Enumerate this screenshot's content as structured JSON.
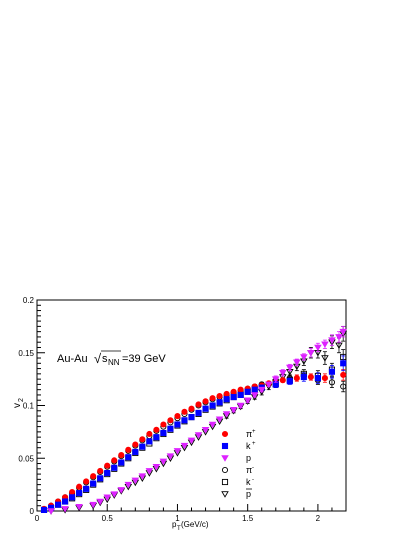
{
  "chart_data": {
    "type": "scatter",
    "annotation": {
      "prefix": "Au-Au",
      "sqrt_symbol": "√",
      "s": "s",
      "subscript": "NN",
      "suffix": "=39 GeV"
    },
    "xlabel": {
      "main": "p",
      "sub": "T",
      "unit": "(GeV/c)"
    },
    "ylabel": {
      "main": "v",
      "sub": "2"
    },
    "xlim": [
      0,
      2.2
    ],
    "ylim": [
      0,
      0.2
    ],
    "x_ticks": [
      {
        "value": 0,
        "label": "0"
      },
      {
        "value": 0.5,
        "label": "0.5"
      },
      {
        "value": 1,
        "label": "1"
      },
      {
        "value": 1.5,
        "label": "1.5"
      },
      {
        "value": 2,
        "label": "2"
      }
    ],
    "y_ticks": [
      {
        "value": 0,
        "label": "0"
      },
      {
        "value": 0.05,
        "label": "0.05"
      },
      {
        "value": 0.1,
        "label": "0.1"
      },
      {
        "value": 0.15,
        "label": "0.15"
      },
      {
        "value": 0.2,
        "label": "0.2"
      }
    ],
    "grid": false,
    "legend_position": "bottom-center",
    "series": [
      {
        "name": "π⁺",
        "label_base": "π",
        "label_sup": "+",
        "marker": "filled-circle",
        "color": "#ff0000",
        "x": [
          0.05,
          0.1,
          0.15,
          0.2,
          0.25,
          0.3,
          0.35,
          0.4,
          0.45,
          0.5,
          0.55,
          0.6,
          0.65,
          0.7,
          0.75,
          0.8,
          0.85,
          0.9,
          0.95,
          1.0,
          1.05,
          1.1,
          1.15,
          1.2,
          1.25,
          1.3,
          1.35,
          1.4,
          1.45,
          1.5,
          1.55,
          1.6,
          1.65,
          1.7,
          1.75,
          1.85,
          1.95,
          2.05,
          2.18
        ],
        "y": [
          0.002,
          0.005,
          0.009,
          0.013,
          0.018,
          0.023,
          0.028,
          0.033,
          0.038,
          0.043,
          0.048,
          0.053,
          0.058,
          0.063,
          0.068,
          0.073,
          0.077,
          0.082,
          0.086,
          0.09,
          0.094,
          0.097,
          0.101,
          0.104,
          0.107,
          0.109,
          0.111,
          0.113,
          0.115,
          0.116,
          0.118,
          0.119,
          0.121,
          0.122,
          0.124,
          0.126,
          0.127,
          0.126,
          0.129
        ],
        "err": [
          0.001,
          0.001,
          0.001,
          0.001,
          0.001,
          0.001,
          0.001,
          0.001,
          0.001,
          0.001,
          0.001,
          0.001,
          0.001,
          0.001,
          0.001,
          0.001,
          0.001,
          0.001,
          0.001,
          0.001,
          0.001,
          0.001,
          0.001,
          0.001,
          0.001,
          0.001,
          0.001,
          0.001,
          0.001,
          0.001,
          0.002,
          0.002,
          0.002,
          0.002,
          0.002,
          0.003,
          0.003,
          0.004,
          0.005
        ]
      },
      {
        "name": "k⁺",
        "label_base": "k",
        "label_sup": "+",
        "marker": "filled-square",
        "color": "#0000ff",
        "x": [
          0.05,
          0.1,
          0.15,
          0.2,
          0.25,
          0.3,
          0.35,
          0.4,
          0.45,
          0.5,
          0.55,
          0.6,
          0.65,
          0.7,
          0.75,
          0.8,
          0.85,
          0.9,
          0.95,
          1.0,
          1.05,
          1.1,
          1.15,
          1.2,
          1.25,
          1.3,
          1.35,
          1.4,
          1.45,
          1.5,
          1.55,
          1.6,
          1.7,
          1.8,
          1.9,
          2.0,
          2.1,
          2.18
        ],
        "y": [
          0.001,
          0.003,
          0.006,
          0.009,
          0.013,
          0.017,
          0.021,
          0.026,
          0.031,
          0.036,
          0.041,
          0.046,
          0.051,
          0.056,
          0.061,
          0.066,
          0.07,
          0.074,
          0.078,
          0.082,
          0.086,
          0.089,
          0.093,
          0.097,
          0.1,
          0.103,
          0.106,
          0.108,
          0.11,
          0.113,
          0.115,
          0.117,
          0.12,
          0.123,
          0.127,
          0.126,
          0.132,
          0.14
        ],
        "err": [
          0.001,
          0.001,
          0.001,
          0.001,
          0.001,
          0.001,
          0.001,
          0.001,
          0.001,
          0.001,
          0.001,
          0.001,
          0.001,
          0.001,
          0.001,
          0.001,
          0.001,
          0.001,
          0.001,
          0.001,
          0.001,
          0.001,
          0.001,
          0.001,
          0.001,
          0.001,
          0.001,
          0.002,
          0.002,
          0.002,
          0.002,
          0.002,
          0.003,
          0.003,
          0.004,
          0.005,
          0.006,
          0.007
        ]
      },
      {
        "name": "p",
        "label_base": "p",
        "label_sup": "",
        "marker": "filled-triangle-down",
        "color": "#dd22ff",
        "x": [
          0.1,
          0.2,
          0.3,
          0.4,
          0.45,
          0.5,
          0.55,
          0.6,
          0.65,
          0.7,
          0.75,
          0.8,
          0.85,
          0.9,
          0.95,
          1.0,
          1.05,
          1.1,
          1.15,
          1.2,
          1.25,
          1.3,
          1.35,
          1.4,
          1.45,
          1.5,
          1.55,
          1.6,
          1.65,
          1.7,
          1.75,
          1.8,
          1.85,
          1.9,
          1.95,
          2.0,
          2.05,
          2.1,
          2.15,
          2.18
        ],
        "y": [
          0.0,
          0.002,
          0.004,
          0.006,
          0.009,
          0.013,
          0.016,
          0.02,
          0.025,
          0.029,
          0.033,
          0.038,
          0.042,
          0.047,
          0.052,
          0.057,
          0.062,
          0.067,
          0.072,
          0.077,
          0.082,
          0.087,
          0.092,
          0.096,
          0.1,
          0.105,
          0.11,
          0.115,
          0.12,
          0.125,
          0.131,
          0.136,
          0.141,
          0.146,
          0.15,
          0.155,
          0.158,
          0.162,
          0.165,
          0.17
        ],
        "err": [
          0.001,
          0.001,
          0.001,
          0.001,
          0.001,
          0.001,
          0.001,
          0.001,
          0.001,
          0.001,
          0.001,
          0.001,
          0.001,
          0.001,
          0.001,
          0.001,
          0.001,
          0.001,
          0.001,
          0.001,
          0.001,
          0.001,
          0.001,
          0.002,
          0.002,
          0.002,
          0.002,
          0.002,
          0.002,
          0.003,
          0.003,
          0.003,
          0.003,
          0.003,
          0.004,
          0.004,
          0.004,
          0.005,
          0.005,
          0.005
        ]
      },
      {
        "name": "π⁻",
        "label_base": "π",
        "label_sup": "-",
        "marker": "open-circle",
        "color": "#000000",
        "x": [
          0.05,
          0.1,
          0.15,
          0.2,
          0.25,
          0.3,
          0.35,
          0.4,
          0.45,
          0.5,
          0.55,
          0.6,
          0.65,
          0.7,
          0.75,
          0.8,
          0.85,
          0.9,
          0.95,
          1.0,
          1.05,
          1.1,
          1.15,
          1.2,
          1.25,
          1.3,
          1.35,
          1.4,
          1.45,
          1.5,
          1.55,
          1.6,
          1.7,
          1.8,
          1.9,
          2.0,
          2.1,
          2.18
        ],
        "y": [
          0.002,
          0.005,
          0.009,
          0.013,
          0.017,
          0.022,
          0.027,
          0.032,
          0.037,
          0.042,
          0.047,
          0.052,
          0.057,
          0.062,
          0.067,
          0.071,
          0.076,
          0.08,
          0.084,
          0.088,
          0.092,
          0.096,
          0.1,
          0.103,
          0.106,
          0.108,
          0.11,
          0.112,
          0.114,
          0.116,
          0.118,
          0.12,
          0.124,
          0.126,
          0.128,
          0.124,
          0.122,
          0.118
        ],
        "err": [
          0.001,
          0.001,
          0.001,
          0.001,
          0.001,
          0.001,
          0.001,
          0.001,
          0.001,
          0.001,
          0.001,
          0.001,
          0.001,
          0.001,
          0.001,
          0.001,
          0.001,
          0.001,
          0.001,
          0.001,
          0.001,
          0.001,
          0.001,
          0.001,
          0.001,
          0.001,
          0.001,
          0.001,
          0.001,
          0.001,
          0.002,
          0.002,
          0.002,
          0.003,
          0.003,
          0.004,
          0.005,
          0.005
        ]
      },
      {
        "name": "k⁻",
        "label_base": "k",
        "label_sup": "-",
        "marker": "open-square",
        "color": "#000000",
        "x": [
          0.05,
          0.1,
          0.15,
          0.2,
          0.25,
          0.3,
          0.35,
          0.4,
          0.45,
          0.5,
          0.55,
          0.6,
          0.65,
          0.7,
          0.75,
          0.8,
          0.85,
          0.9,
          0.95,
          1.0,
          1.05,
          1.1,
          1.15,
          1.2,
          1.25,
          1.3,
          1.35,
          1.4,
          1.45,
          1.5,
          1.55,
          1.6,
          1.7,
          1.8,
          1.9,
          2.0,
          2.1,
          2.18
        ],
        "y": [
          0.001,
          0.003,
          0.006,
          0.009,
          0.012,
          0.016,
          0.02,
          0.025,
          0.03,
          0.035,
          0.04,
          0.045,
          0.05,
          0.055,
          0.06,
          0.064,
          0.069,
          0.073,
          0.077,
          0.081,
          0.085,
          0.089,
          0.092,
          0.096,
          0.099,
          0.102,
          0.105,
          0.108,
          0.11,
          0.113,
          0.115,
          0.117,
          0.12,
          0.124,
          0.13,
          0.128,
          0.134,
          0.146
        ],
        "err": [
          0.001,
          0.001,
          0.001,
          0.001,
          0.001,
          0.001,
          0.001,
          0.001,
          0.001,
          0.001,
          0.001,
          0.001,
          0.001,
          0.001,
          0.001,
          0.001,
          0.001,
          0.001,
          0.001,
          0.001,
          0.001,
          0.001,
          0.001,
          0.001,
          0.001,
          0.001,
          0.001,
          0.002,
          0.002,
          0.002,
          0.002,
          0.002,
          0.003,
          0.003,
          0.004,
          0.005,
          0.006,
          0.007
        ]
      },
      {
        "name": "p̄",
        "label_base": "p",
        "label_sup": "",
        "marker": "open-triangle-down",
        "color": "#000000",
        "overline": true,
        "x": [
          0.1,
          0.2,
          0.3,
          0.4,
          0.45,
          0.5,
          0.55,
          0.6,
          0.65,
          0.7,
          0.75,
          0.8,
          0.85,
          0.9,
          0.95,
          1.0,
          1.05,
          1.1,
          1.15,
          1.2,
          1.25,
          1.3,
          1.35,
          1.4,
          1.45,
          1.5,
          1.55,
          1.6,
          1.65,
          1.7,
          1.75,
          1.8,
          1.85,
          1.9,
          1.95,
          2.0,
          2.05,
          2.1,
          2.15,
          2.18
        ],
        "y": [
          0.0,
          0.001,
          0.003,
          0.005,
          0.008,
          0.011,
          0.015,
          0.019,
          0.023,
          0.027,
          0.031,
          0.036,
          0.04,
          0.045,
          0.05,
          0.055,
          0.06,
          0.065,
          0.07,
          0.075,
          0.08,
          0.085,
          0.09,
          0.095,
          0.099,
          0.104,
          0.108,
          0.113,
          0.118,
          0.122,
          0.127,
          0.132,
          0.137,
          0.142,
          0.15,
          0.15,
          0.145,
          0.16,
          0.157,
          0.168
        ],
        "err": [
          0.001,
          0.001,
          0.001,
          0.001,
          0.001,
          0.001,
          0.001,
          0.001,
          0.001,
          0.001,
          0.001,
          0.001,
          0.001,
          0.001,
          0.001,
          0.001,
          0.001,
          0.001,
          0.001,
          0.001,
          0.001,
          0.001,
          0.002,
          0.002,
          0.002,
          0.002,
          0.002,
          0.003,
          0.003,
          0.003,
          0.003,
          0.004,
          0.004,
          0.004,
          0.005,
          0.005,
          0.006,
          0.006,
          0.007,
          0.007
        ]
      }
    ]
  }
}
